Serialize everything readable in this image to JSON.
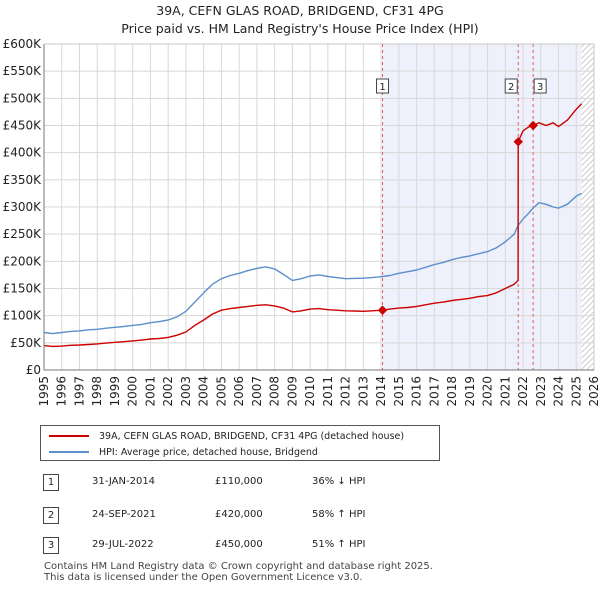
{
  "chart_data": {
    "type": "line",
    "title": "39A, CEFN GLAS ROAD, BRIDGEND, CF31 4PG",
    "subtitle": "Price paid vs. HM Land Registry's House Price Index (HPI)",
    "xlim": [
      1995,
      2026
    ],
    "ylim": [
      0,
      600000
    ],
    "x_ticks": [
      1995,
      1996,
      1997,
      1998,
      1999,
      2000,
      2001,
      2002,
      2003,
      2004,
      2005,
      2006,
      2007,
      2008,
      2009,
      2010,
      2011,
      2012,
      2013,
      2014,
      2015,
      2016,
      2017,
      2018,
      2019,
      2020,
      2021,
      2022,
      2023,
      2024,
      2025,
      2026
    ],
    "y_ticks": [
      {
        "value": 0,
        "label": "£0"
      },
      {
        "value": 50000,
        "label": "£50K"
      },
      {
        "value": 100000,
        "label": "£100K"
      },
      {
        "value": 150000,
        "label": "£150K"
      },
      {
        "value": 200000,
        "label": "£200K"
      },
      {
        "value": 250000,
        "label": "£250K"
      },
      {
        "value": 300000,
        "label": "£300K"
      },
      {
        "value": 350000,
        "label": "£350K"
      },
      {
        "value": 400000,
        "label": "£400K"
      },
      {
        "value": 450000,
        "label": "£450K"
      },
      {
        "value": 500000,
        "label": "£500K"
      },
      {
        "value": 550000,
        "label": "£550K"
      },
      {
        "value": 600000,
        "label": "£600K"
      }
    ],
    "grid": true,
    "shaded_span": [
      2014.08,
      2025.3
    ],
    "hatched_span": [
      2025.3,
      2026
    ],
    "series": [
      {
        "name": "39A, CEFN GLAS ROAD, BRIDGEND, CF31 4PG (detached house)",
        "color": "#cc0000",
        "points": [
          [
            1995.0,
            45000
          ],
          [
            1995.5,
            43500
          ],
          [
            1996.0,
            44000
          ],
          [
            1996.5,
            45500
          ],
          [
            1997.0,
            46000
          ],
          [
            1997.5,
            47000
          ],
          [
            1998.0,
            48000
          ],
          [
            1998.5,
            49500
          ],
          [
            1999.0,
            51000
          ],
          [
            1999.5,
            52000
          ],
          [
            2000.0,
            53500
          ],
          [
            2000.5,
            55000
          ],
          [
            2001.0,
            57000
          ],
          [
            2001.5,
            58000
          ],
          [
            2002.0,
            60000
          ],
          [
            2002.5,
            64000
          ],
          [
            2003.0,
            70000
          ],
          [
            2003.5,
            82000
          ],
          [
            2004.0,
            92000
          ],
          [
            2004.5,
            103000
          ],
          [
            2005.0,
            110000
          ],
          [
            2005.5,
            113000
          ],
          [
            2006.0,
            115000
          ],
          [
            2006.5,
            117000
          ],
          [
            2007.0,
            119000
          ],
          [
            2007.5,
            120000
          ],
          [
            2008.0,
            118000
          ],
          [
            2008.5,
            114000
          ],
          [
            2009.0,
            107000
          ],
          [
            2009.5,
            109000
          ],
          [
            2010.0,
            112000
          ],
          [
            2010.5,
            113000
          ],
          [
            2011.0,
            111000
          ],
          [
            2011.5,
            110000
          ],
          [
            2012.0,
            109000
          ],
          [
            2012.5,
            108500
          ],
          [
            2013.0,
            108000
          ],
          [
            2013.5,
            109000
          ],
          [
            2014.08,
            110000
          ],
          [
            2014.5,
            112000
          ],
          [
            2015.0,
            114000
          ],
          [
            2015.5,
            115000
          ],
          [
            2016.0,
            117000
          ],
          [
            2016.5,
            120000
          ],
          [
            2017.0,
            123000
          ],
          [
            2017.5,
            125000
          ],
          [
            2018.0,
            128000
          ],
          [
            2018.5,
            130000
          ],
          [
            2019.0,
            132000
          ],
          [
            2019.5,
            135000
          ],
          [
            2020.0,
            137000
          ],
          [
            2020.5,
            142000
          ],
          [
            2021.0,
            150000
          ],
          [
            2021.5,
            158000
          ],
          [
            2021.72,
            165000
          ],
          [
            2021.73,
            420000
          ],
          [
            2022.0,
            440000
          ],
          [
            2022.3,
            447000
          ],
          [
            2022.57,
            450000
          ],
          [
            2022.9,
            455000
          ],
          [
            2023.3,
            450000
          ],
          [
            2023.7,
            455000
          ],
          [
            2024.0,
            448000
          ],
          [
            2024.5,
            460000
          ],
          [
            2025.0,
            480000
          ],
          [
            2025.3,
            490000
          ]
        ]
      },
      {
        "name": "HPI: Average price, detached house, Bridgend",
        "color": "#5b8fcc",
        "points": [
          [
            1995.0,
            69000
          ],
          [
            1995.5,
            67000
          ],
          [
            1996.0,
            69000
          ],
          [
            1996.5,
            71000
          ],
          [
            1997.0,
            72000
          ],
          [
            1997.5,
            74000
          ],
          [
            1998.0,
            75000
          ],
          [
            1998.5,
            77000
          ],
          [
            1999.0,
            78500
          ],
          [
            1999.5,
            80000
          ],
          [
            2000.0,
            82000
          ],
          [
            2000.5,
            84000
          ],
          [
            2001.0,
            87000
          ],
          [
            2001.5,
            89000
          ],
          [
            2002.0,
            92000
          ],
          [
            2002.5,
            98000
          ],
          [
            2003.0,
            108000
          ],
          [
            2003.5,
            125000
          ],
          [
            2004.0,
            142000
          ],
          [
            2004.5,
            158000
          ],
          [
            2005.0,
            168000
          ],
          [
            2005.5,
            174000
          ],
          [
            2006.0,
            178000
          ],
          [
            2006.5,
            183000
          ],
          [
            2007.0,
            187000
          ],
          [
            2007.5,
            190000
          ],
          [
            2008.0,
            186000
          ],
          [
            2008.5,
            176000
          ],
          [
            2009.0,
            165000
          ],
          [
            2009.5,
            168000
          ],
          [
            2010.0,
            173000
          ],
          [
            2010.5,
            175000
          ],
          [
            2011.0,
            172000
          ],
          [
            2011.5,
            170000
          ],
          [
            2012.0,
            168000
          ],
          [
            2012.5,
            168500
          ],
          [
            2013.0,
            169000
          ],
          [
            2013.5,
            170000
          ],
          [
            2014.08,
            172000
          ],
          [
            2014.5,
            174000
          ],
          [
            2015.0,
            178000
          ],
          [
            2015.5,
            181000
          ],
          [
            2016.0,
            184000
          ],
          [
            2016.5,
            189000
          ],
          [
            2017.0,
            194000
          ],
          [
            2017.5,
            198000
          ],
          [
            2018.0,
            203000
          ],
          [
            2018.5,
            207000
          ],
          [
            2019.0,
            210000
          ],
          [
            2019.5,
            214000
          ],
          [
            2020.0,
            218000
          ],
          [
            2020.5,
            225000
          ],
          [
            2021.0,
            236000
          ],
          [
            2021.5,
            250000
          ],
          [
            2021.72,
            266000
          ],
          [
            2022.0,
            278000
          ],
          [
            2022.3,
            288000
          ],
          [
            2022.57,
            298000
          ],
          [
            2022.9,
            308000
          ],
          [
            2023.3,
            305000
          ],
          [
            2023.7,
            300000
          ],
          [
            2024.0,
            298000
          ],
          [
            2024.5,
            305000
          ],
          [
            2025.0,
            320000
          ],
          [
            2025.3,
            325000
          ]
        ]
      }
    ],
    "sale_markers": [
      {
        "label": "1",
        "x": 2014.08,
        "y": 110000
      },
      {
        "label": "2",
        "x": 2021.73,
        "y": 420000
      },
      {
        "label": "3",
        "x": 2022.57,
        "y": 450000
      }
    ]
  },
  "legend": {
    "items": [
      {
        "label": "39A, CEFN GLAS ROAD, BRIDGEND, CF31 4PG (detached house)",
        "color": "#cc0000"
      },
      {
        "label": "HPI: Average price, detached house, Bridgend",
        "color": "#5b8fcc"
      }
    ]
  },
  "sales": [
    {
      "num": "1",
      "date": "31-JAN-2014",
      "price": "£110,000",
      "hpi": "36% ↓ HPI"
    },
    {
      "num": "2",
      "date": "24-SEP-2021",
      "price": "£420,000",
      "hpi": "58% ↑ HPI"
    },
    {
      "num": "3",
      "date": "29-JUL-2022",
      "price": "£450,000",
      "hpi": "51% ↑ HPI"
    }
  ],
  "footer": {
    "line1": "Contains HM Land Registry data © Crown copyright and database right 2025.",
    "line2": "This data is licensed under the Open Government Licence v3.0."
  }
}
